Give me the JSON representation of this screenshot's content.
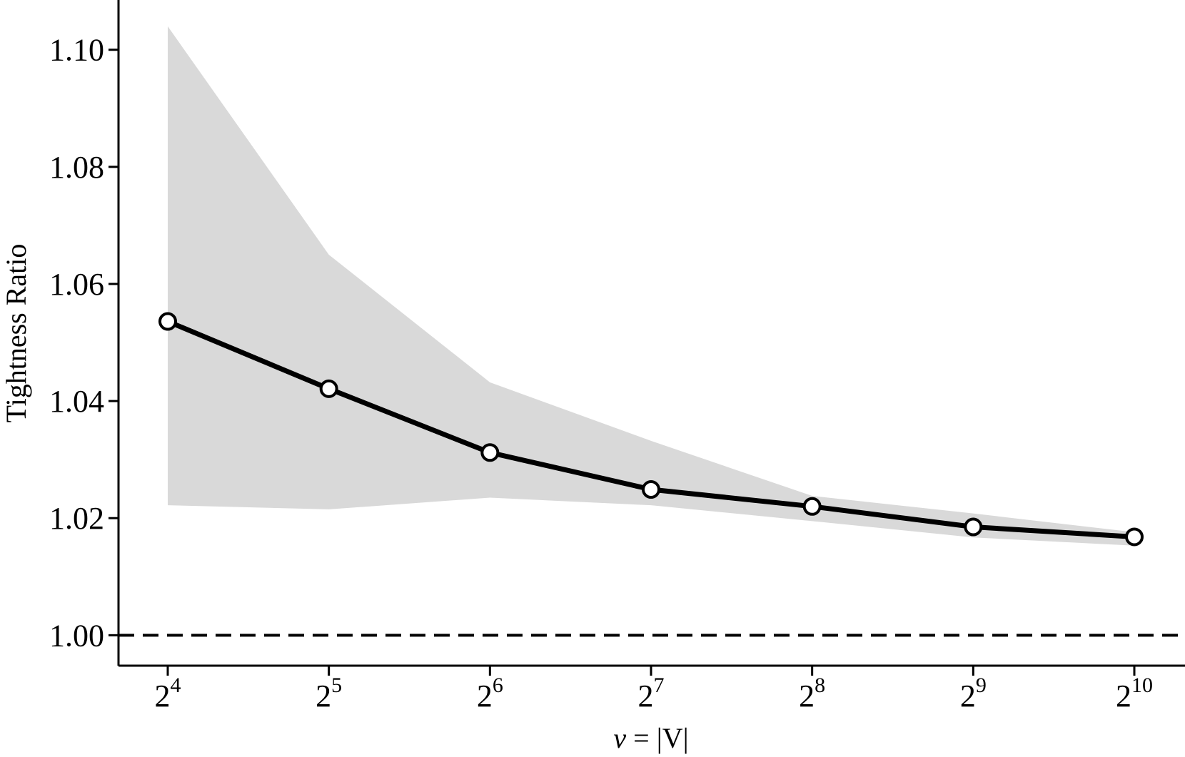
{
  "chart_data": {
    "type": "line",
    "xscale": "log2",
    "x": [
      16,
      32,
      64,
      128,
      256,
      512,
      1024
    ],
    "x_tick_labels": [
      {
        "base": "2",
        "exp": "4"
      },
      {
        "base": "2",
        "exp": "5"
      },
      {
        "base": "2",
        "exp": "6"
      },
      {
        "base": "2",
        "exp": "7"
      },
      {
        "base": "2",
        "exp": "8"
      },
      {
        "base": "2",
        "exp": "9"
      },
      {
        "base": "2",
        "exp": "10"
      }
    ],
    "series": [
      {
        "values": [
          1.0536,
          1.0421,
          1.0312,
          1.0249,
          1.022,
          1.0185,
          1.0168
        ],
        "color": "#000000",
        "marker": "open-circle"
      }
    ],
    "band": {
      "upper": [
        1.104,
        1.065,
        1.0432,
        1.0332,
        1.0238,
        1.0208,
        1.0176
      ],
      "lower": [
        1.0222,
        1.0215,
        1.0235,
        1.0222,
        1.0195,
        1.0167,
        1.0153
      ],
      "color": "#d9d9d9"
    },
    "reference_line": {
      "y": 1.0,
      "style": "dashed",
      "color": "#000000"
    },
    "xlabel": {
      "main": "v",
      "eq": " = |V|"
    },
    "ylabel": "Tightness Ratio",
    "yticks": [
      "1.00",
      "1.02",
      "1.04",
      "1.06",
      "1.08",
      "1.10"
    ],
    "ylim": [
      0.9948,
      1.1085
    ],
    "grid": false,
    "title": ""
  }
}
